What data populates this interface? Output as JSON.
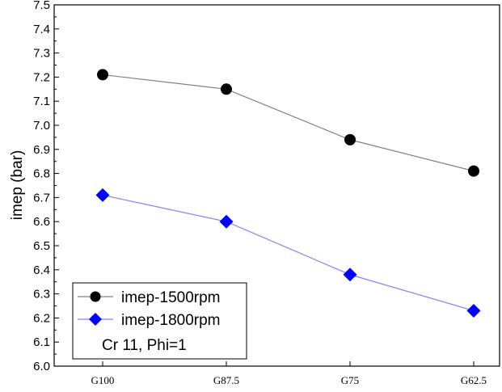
{
  "chart_data": {
    "type": "line",
    "categories": [
      "G100",
      "G87.5",
      "G75",
      "G62.5"
    ],
    "series": [
      {
        "name": "imep-1500rpm",
        "values": [
          7.21,
          7.15,
          6.94,
          6.81
        ],
        "color": "#000000",
        "line_color": "#808080",
        "marker": "circle"
      },
      {
        "name": "imep-1800rpm",
        "values": [
          6.71,
          6.6,
          6.38,
          6.23
        ],
        "color": "#0000ff",
        "line_color": "#8080ff",
        "marker": "diamond"
      }
    ],
    "ylabel": "imep (bar)",
    "xlabel": "",
    "ylim": [
      6.0,
      7.5
    ],
    "y_ticks": [
      "6.0",
      "6.1",
      "6.2",
      "6.3",
      "6.4",
      "6.5",
      "6.6",
      "6.7",
      "6.8",
      "6.9",
      "7.0",
      "7.1",
      "7.2",
      "7.3",
      "7.4",
      "7.5"
    ],
    "grid": false,
    "legend_position": "bottom-left",
    "annotation": "Cr 11, Phi=1"
  }
}
